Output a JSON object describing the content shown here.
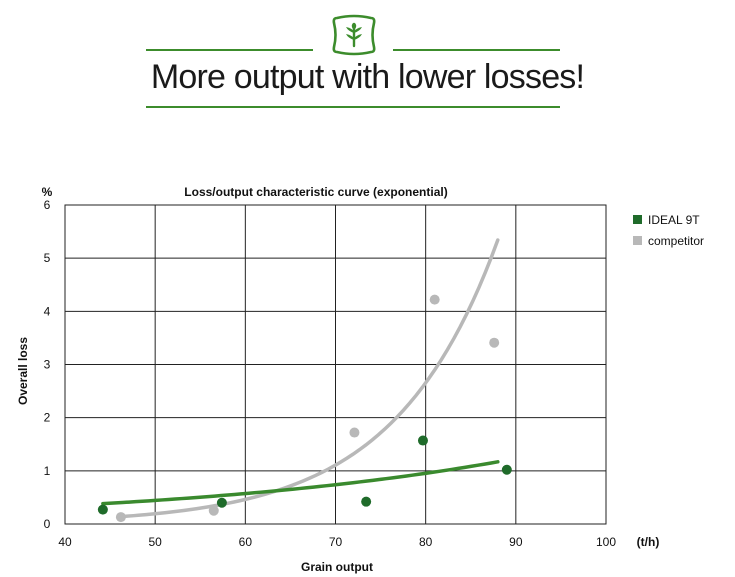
{
  "header": {
    "headline": "More output with lower losses!",
    "logo_icon": "grain-sack-icon",
    "accent_color": "#3c8c2c"
  },
  "chart_data": {
    "type": "scatter",
    "title": "Loss/output characteristic curve (exponential)",
    "xlabel": "Grain output",
    "ylabel": "Overall loss",
    "x_unit": "(t/h)",
    "y_unit": "%",
    "xlim": [
      40,
      100
    ],
    "ylim": [
      0,
      6
    ],
    "xticks": [
      "40",
      "50",
      "60",
      "70",
      "80",
      "90",
      "100"
    ],
    "yticks": [
      "0",
      "1",
      "2",
      "3",
      "4",
      "5",
      "6"
    ],
    "grid": true,
    "legend_position": "right",
    "series": [
      {
        "name": "IDEAL 9T",
        "color": "#1f6b2a",
        "line_color": "#3a8a2e",
        "points": [
          [
            44.2,
            0.27
          ],
          [
            57.4,
            0.4
          ],
          [
            73.4,
            0.42
          ],
          [
            79.7,
            1.57
          ],
          [
            89.0,
            1.02
          ]
        ],
        "fit": {
          "a": 0.124,
          "b": 0.0255,
          "x_range": [
            44.2,
            88.0
          ]
        }
      },
      {
        "name": "competitor",
        "color": "#b8b8b8",
        "line_color": "#b8b8b8",
        "points": [
          [
            46.2,
            0.13
          ],
          [
            56.5,
            0.25
          ],
          [
            72.1,
            1.72
          ],
          [
            81.0,
            4.22
          ],
          [
            87.6,
            3.41
          ]
        ],
        "fit": {
          "a": 0.00244,
          "b": 0.0874,
          "x_range": [
            46.2,
            88.0
          ]
        }
      }
    ]
  }
}
